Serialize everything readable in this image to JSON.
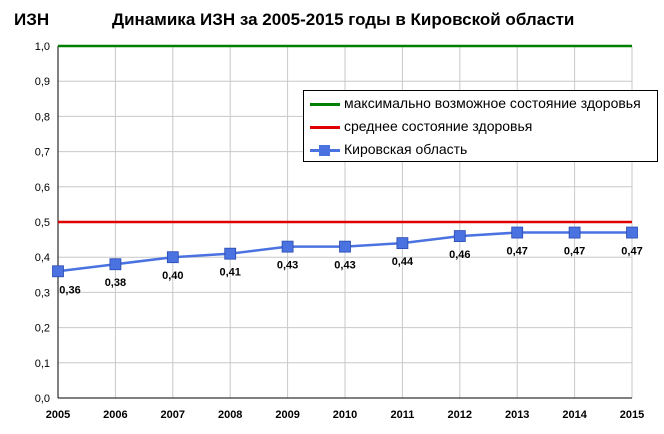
{
  "title": "Динамика ИЗН за 2005-2015 годы в Кировской области",
  "ylabel": "ИЗН",
  "legend": {
    "items": [
      {
        "label": "максимально возможное состояние здоровья",
        "color": "#008000",
        "kind": "line"
      },
      {
        "label": "среднее состояние здоровья",
        "color": "#e00000",
        "kind": "line"
      },
      {
        "label": "Кировская область",
        "color": "#4a72e0",
        "kind": "line-marker"
      }
    ]
  },
  "chart_data": {
    "type": "line",
    "title": "Динамика ИЗН за 2005-2015 годы в Кировской области",
    "ylabel": "ИЗН",
    "xlabel": "",
    "x": [
      2005,
      2006,
      2007,
      2008,
      2009,
      2010,
      2011,
      2012,
      2013,
      2014,
      2015
    ],
    "x_tick_labels": [
      "2005",
      "2006",
      "2007",
      "2008",
      "2009",
      "2010",
      "2011",
      "2012",
      "2013",
      "2014",
      "2015"
    ],
    "ylim": [
      0.0,
      1.0
    ],
    "y_ticks": [
      "0,0",
      "0,1",
      "0,2",
      "0,3",
      "0,4",
      "0,5",
      "0,6",
      "0,7",
      "0,8",
      "0,9",
      "1,0"
    ],
    "grid": true,
    "legend_position": "top-right",
    "series": [
      {
        "name": "максимально возможное состояние здоровья",
        "values": [
          1.0,
          1.0,
          1.0,
          1.0,
          1.0,
          1.0,
          1.0,
          1.0,
          1.0,
          1.0,
          1.0
        ],
        "color": "#008000"
      },
      {
        "name": "среднее состояние здоровья",
        "values": [
          0.5,
          0.5,
          0.5,
          0.5,
          0.5,
          0.5,
          0.5,
          0.5,
          0.5,
          0.5,
          0.5
        ],
        "color": "#e00000"
      },
      {
        "name": "Кировская область",
        "values": [
          0.36,
          0.38,
          0.4,
          0.41,
          0.43,
          0.43,
          0.44,
          0.46,
          0.47,
          0.47,
          0.47
        ],
        "data_labels": [
          "0,36",
          "0,38",
          "0,40",
          "0,41",
          "0,43",
          "0,43",
          "0,44",
          "0,46",
          "0,47",
          "0,47",
          "0,47"
        ],
        "color": "#4a72e0"
      }
    ]
  }
}
